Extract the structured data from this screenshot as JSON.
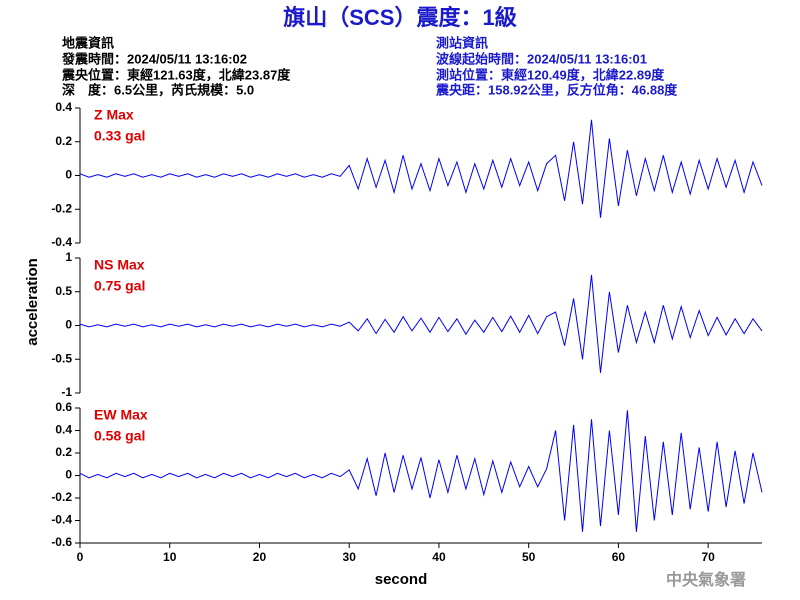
{
  "header": {
    "title": "旗山（SCS）震度：1級",
    "event": [
      "地震資訊",
      "發震時間：2024/05/11 13:16:02",
      "震央位置：東經121.63度，北緯23.87度",
      "深　度：6.5公里，芮氏規模：5.0"
    ],
    "station": [
      "測站資訊",
      "波線起始時間：2024/05/11 13:16:01",
      "測站位置：東經120.49度，北緯22.89度",
      "震央距：158.92公里，反方位角：46.88度"
    ]
  },
  "footer": "中央氣象署",
  "chart_data": [
    {
      "type": "line",
      "annotation": [
        "Z Max",
        "0.33 gal"
      ],
      "color": "#0000ff",
      "xlim": [
        0,
        76
      ],
      "ylim": [
        -0.4,
        0.4
      ],
      "yticks": [
        -0.4,
        -0.2,
        0,
        0.2,
        0.4
      ],
      "x": [
        0,
        1,
        2,
        3,
        4,
        5,
        6,
        7,
        8,
        9,
        10,
        11,
        12,
        13,
        14,
        15,
        16,
        17,
        18,
        19,
        20,
        21,
        22,
        23,
        24,
        25,
        26,
        27,
        28,
        29,
        30,
        31,
        32,
        33,
        34,
        35,
        36,
        37,
        38,
        39,
        40,
        41,
        42,
        43,
        44,
        45,
        46,
        47,
        48,
        49,
        50,
        51,
        52,
        53,
        54,
        55,
        56,
        57,
        58,
        59,
        60,
        61,
        62,
        63,
        64,
        65,
        66,
        67,
        68,
        69,
        70,
        71,
        72,
        73,
        74,
        75,
        76
      ],
      "values": [
        0.01,
        -0.01,
        0.005,
        -0.01,
        0.01,
        -0.005,
        0.01,
        -0.01,
        0.005,
        -0.01,
        0.01,
        -0.005,
        0.01,
        -0.01,
        0.005,
        -0.01,
        0.01,
        -0.005,
        0.01,
        -0.01,
        0.005,
        -0.01,
        0.01,
        -0.005,
        0.01,
        -0.01,
        0.005,
        -0.01,
        0.01,
        -0.005,
        0.06,
        -0.08,
        0.1,
        -0.07,
        0.09,
        -0.1,
        0.12,
        -0.08,
        0.07,
        -0.09,
        0.1,
        -0.06,
        0.08,
        -0.1,
        0.07,
        -0.08,
        0.09,
        -0.07,
        0.1,
        -0.06,
        0.08,
        -0.09,
        0.07,
        0.12,
        -0.15,
        0.2,
        -0.17,
        0.33,
        -0.25,
        0.22,
        -0.18,
        0.15,
        -0.12,
        0.1,
        -0.09,
        0.12,
        -0.1,
        0.08,
        -0.11,
        0.09,
        -0.08,
        0.1,
        -0.07,
        0.09,
        -0.1,
        0.08,
        -0.06
      ]
    },
    {
      "type": "line",
      "annotation": [
        "NS Max",
        "0.75 gal"
      ],
      "color": "#0000ff",
      "ylabel": "acceleration",
      "xlim": [
        0,
        76
      ],
      "ylim": [
        -1,
        1
      ],
      "yticks": [
        -1,
        -0.5,
        0,
        0.5,
        1
      ],
      "x": [
        0,
        1,
        2,
        3,
        4,
        5,
        6,
        7,
        8,
        9,
        10,
        11,
        12,
        13,
        14,
        15,
        16,
        17,
        18,
        19,
        20,
        21,
        22,
        23,
        24,
        25,
        26,
        27,
        28,
        29,
        30,
        31,
        32,
        33,
        34,
        35,
        36,
        37,
        38,
        39,
        40,
        41,
        42,
        43,
        44,
        45,
        46,
        47,
        48,
        49,
        50,
        51,
        52,
        53,
        54,
        55,
        56,
        57,
        58,
        59,
        60,
        61,
        62,
        63,
        64,
        65,
        66,
        67,
        68,
        69,
        70,
        71,
        72,
        73,
        74,
        75,
        76
      ],
      "values": [
        0.02,
        -0.02,
        0.01,
        -0.02,
        0.02,
        -0.01,
        0.02,
        -0.02,
        0.01,
        -0.02,
        0.02,
        -0.01,
        0.02,
        -0.02,
        0.01,
        -0.02,
        0.02,
        -0.01,
        0.02,
        -0.02,
        0.01,
        -0.02,
        0.02,
        -0.01,
        0.02,
        -0.02,
        0.01,
        -0.02,
        0.02,
        -0.01,
        0.05,
        -0.08,
        0.1,
        -0.12,
        0.09,
        -0.1,
        0.13,
        -0.08,
        0.11,
        -0.1,
        0.12,
        -0.09,
        0.1,
        -0.13,
        0.08,
        -0.1,
        0.12,
        -0.09,
        0.14,
        -0.1,
        0.15,
        -0.12,
        0.13,
        0.2,
        -0.3,
        0.4,
        -0.5,
        0.75,
        -0.7,
        0.5,
        -0.4,
        0.3,
        -0.25,
        0.2,
        -0.25,
        0.3,
        -0.2,
        0.28,
        -0.18,
        0.22,
        -0.15,
        0.12,
        -0.14,
        0.1,
        -0.12,
        0.1,
        -0.08
      ]
    },
    {
      "type": "line",
      "annotation": [
        "EW Max",
        "0.58 gal"
      ],
      "color": "#0000ff",
      "xlabel": "second",
      "xlim": [
        0,
        76
      ],
      "ylim": [
        -0.6,
        0.6
      ],
      "yticks": [
        -0.6,
        -0.4,
        -0.2,
        0,
        0.2,
        0.4,
        0.6
      ],
      "xticks": [
        0,
        10,
        20,
        30,
        40,
        50,
        60,
        70
      ],
      "x": [
        0,
        1,
        2,
        3,
        4,
        5,
        6,
        7,
        8,
        9,
        10,
        11,
        12,
        13,
        14,
        15,
        16,
        17,
        18,
        19,
        20,
        21,
        22,
        23,
        24,
        25,
        26,
        27,
        28,
        29,
        30,
        31,
        32,
        33,
        34,
        35,
        36,
        37,
        38,
        39,
        40,
        41,
        42,
        43,
        44,
        45,
        46,
        47,
        48,
        49,
        50,
        51,
        52,
        53,
        54,
        55,
        56,
        57,
        58,
        59,
        60,
        61,
        62,
        63,
        64,
        65,
        66,
        67,
        68,
        69,
        70,
        71,
        72,
        73,
        74,
        75,
        76
      ],
      "values": [
        0.02,
        -0.02,
        0.01,
        -0.02,
        0.02,
        -0.01,
        0.02,
        -0.02,
        0.01,
        -0.02,
        0.02,
        -0.01,
        0.02,
        -0.02,
        0.01,
        -0.02,
        0.02,
        -0.01,
        0.02,
        -0.02,
        0.01,
        -0.02,
        0.02,
        -0.01,
        0.02,
        -0.02,
        0.01,
        -0.02,
        0.02,
        -0.01,
        0.05,
        -0.12,
        0.15,
        -0.18,
        0.2,
        -0.15,
        0.18,
        -0.12,
        0.16,
        -0.2,
        0.14,
        -0.15,
        0.18,
        -0.12,
        0.15,
        -0.17,
        0.13,
        -0.15,
        0.12,
        -0.1,
        0.08,
        -0.1,
        0.06,
        0.4,
        -0.4,
        0.45,
        -0.5,
        0.5,
        -0.45,
        0.4,
        -0.35,
        0.58,
        -0.5,
        0.35,
        -0.4,
        0.3,
        -0.35,
        0.38,
        -0.3,
        0.25,
        -0.32,
        0.3,
        -0.28,
        0.22,
        -0.25,
        0.2,
        -0.15
      ]
    }
  ]
}
